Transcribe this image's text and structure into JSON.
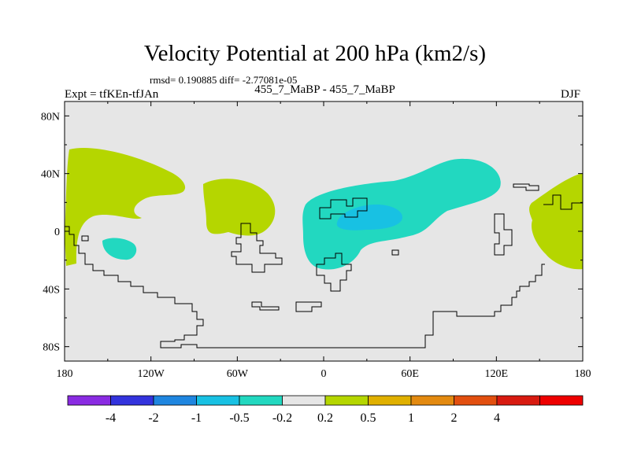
{
  "header": {
    "title": "Velocity Potential at 200 hPa (km2/s)",
    "stats": "rmsd= 0.190885  diff= -2.77081e-05",
    "left_label": "Expt = tfKEn-tfJAn",
    "center_label": "455_7_MaBP - 455_7_MaBP",
    "right_label": "DJF"
  },
  "map": {
    "projection": "cylindrical-equidistant",
    "lon_range": [
      -180,
      180
    ],
    "lat_range": [
      -90,
      90
    ],
    "background_color": "#e6e6e6",
    "x_ticks": [
      "180",
      "120W",
      "60W",
      "0",
      "60E",
      "120E",
      "180"
    ],
    "y_ticks": [
      "80N",
      "40N",
      "0",
      "40S",
      "80S"
    ]
  },
  "colorbar": {
    "colors": [
      "#8a2be2",
      "#3333dd",
      "#1f86e0",
      "#18c1e3",
      "#22d8c0",
      "#e6e6e6",
      "#b5d600",
      "#e0b000",
      "#e38a10",
      "#e24f0f",
      "#d81a10",
      "#ee0000"
    ],
    "labels": [
      "-4",
      "-2",
      "-1",
      "-0.5",
      "-0.2",
      "0.2",
      "0.5",
      "1",
      "2",
      "4"
    ]
  }
}
